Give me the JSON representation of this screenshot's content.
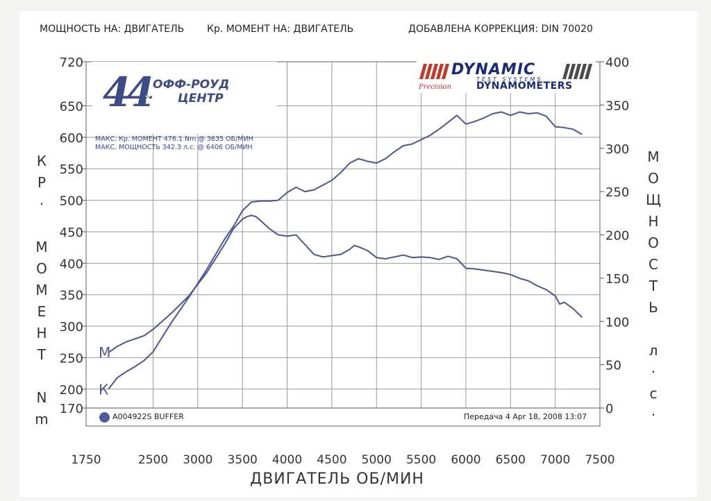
{
  "header": {
    "power_at": "МОЩНОСТЬ НА: ДВИГАТЕЛЬ",
    "torque_at": "Кр. МОМЕНТ НА: ДВИГАТЕЛЬ",
    "correction": "ДОБАВЛЕНА КОРРЕКЦИЯ: DIN 70020"
  },
  "logo": {
    "digits": "44",
    "line1": "ОФФ-РОУД",
    "line2": "ЦЕНТР",
    "cross": "×"
  },
  "brand": {
    "main": "DYNAMIC",
    "sub": "TEST SYSTEMS",
    "precision": "Precision",
    "dyno": "DYNAMOMETERS",
    "stripe_color": "#c0392b"
  },
  "max_info": {
    "torque": "МАКС. Кр. МОМЕНТ 476.1 Nm @ 3635 ОБ/МИН",
    "power": "МАКС. МОЩНОСТЬ 342.3 л.с. @ 6406 ОБ/МИН"
  },
  "legend": {
    "run_name": "A004922S BUFFER",
    "transfer": "Передача 4 Apr 18, 2008 13:07"
  },
  "chart_data": {
    "type": "line",
    "xlabel": "ДВИГАТЕЛЬ ОБ/МИН",
    "ylabel_left": "Кр. МОМЕНТ Nm",
    "ylabel_right": "МОЩНОСТЬ л.с.",
    "ylabel_left_chars": [
      "К",
      "Р",
      "·",
      "",
      "М",
      "О",
      "М",
      "Е",
      "Н",
      "Т",
      "",
      "N",
      "m"
    ],
    "ylabel_right_chars": [
      "М",
      "О",
      "Щ",
      "Н",
      "О",
      "С",
      "Т",
      "Ь",
      "",
      "л",
      "·",
      "с",
      "·"
    ],
    "xlim": [
      1750,
      7500
    ],
    "ylim_left": [
      170,
      720
    ],
    "ylim_right": [
      0,
      400
    ],
    "x_ticks": [
      1750,
      2500,
      3000,
      3500,
      4000,
      4500,
      5000,
      5500,
      6000,
      6500,
      7000,
      7500
    ],
    "y_left_ticks": [
      170,
      200,
      250,
      300,
      350,
      400,
      450,
      500,
      550,
      600,
      650,
      720
    ],
    "y_right_ticks": [
      0,
      50,
      100,
      150,
      200,
      250,
      300,
      350,
      400
    ],
    "grid": true,
    "line_color": "#4a5595",
    "series": [
      {
        "name": "M",
        "axis": "left",
        "x": [
          2000,
          2100,
          2200,
          2300,
          2400,
          2500,
          2700,
          2900,
          3100,
          3300,
          3400,
          3500,
          3550,
          3600,
          3650,
          3700,
          3800,
          3900,
          4000,
          4100,
          4300,
          4400,
          4500,
          4600,
          4700,
          4750,
          4800,
          4900,
          5000,
          5100,
          5200,
          5300,
          5400,
          5500,
          5600,
          5700,
          5800,
          5900,
          6000,
          6100,
          6200,
          6300,
          6400,
          6500,
          6600,
          6700,
          6800,
          6900,
          7000,
          7050,
          7100,
          7200,
          7300
        ],
        "values": [
          258,
          268,
          275,
          280,
          285,
          295,
          320,
          348,
          385,
          430,
          455,
          470,
          474,
          476,
          474,
          468,
          455,
          445,
          443,
          445,
          414,
          410,
          412,
          414,
          422,
          428,
          426,
          420,
          409,
          407,
          410,
          413,
          409,
          410,
          409,
          406,
          411,
          407,
          392,
          391,
          389,
          387,
          385,
          382,
          376,
          372,
          364,
          358,
          348,
          335,
          338,
          328,
          314
        ]
      },
      {
        "name": "К",
        "axis": "right",
        "x": [
          2000,
          2100,
          2200,
          2300,
          2400,
          2500,
          2700,
          2900,
          3100,
          3300,
          3400,
          3500,
          3600,
          3700,
          3800,
          3900,
          4000,
          4100,
          4200,
          4300,
          4500,
          4600,
          4700,
          4800,
          4900,
          5000,
          5100,
          5200,
          5300,
          5400,
          5500,
          5600,
          5700,
          5800,
          5900,
          6000,
          6100,
          6200,
          6300,
          6400,
          6500,
          6600,
          6700,
          6800,
          6900,
          7000,
          7100,
          7200,
          7300
        ],
        "values": [
          22,
          35,
          42,
          48,
          55,
          65,
          98,
          128,
          160,
          195,
          210,
          228,
          238,
          239,
          239,
          240,
          249,
          255,
          250,
          252,
          263,
          272,
          283,
          288,
          285,
          283,
          288,
          296,
          303,
          305,
          310,
          315,
          322,
          330,
          338,
          328,
          331,
          335,
          340,
          342,
          338,
          342,
          340,
          341,
          337,
          325,
          324,
          322,
          316
        ]
      }
    ]
  }
}
